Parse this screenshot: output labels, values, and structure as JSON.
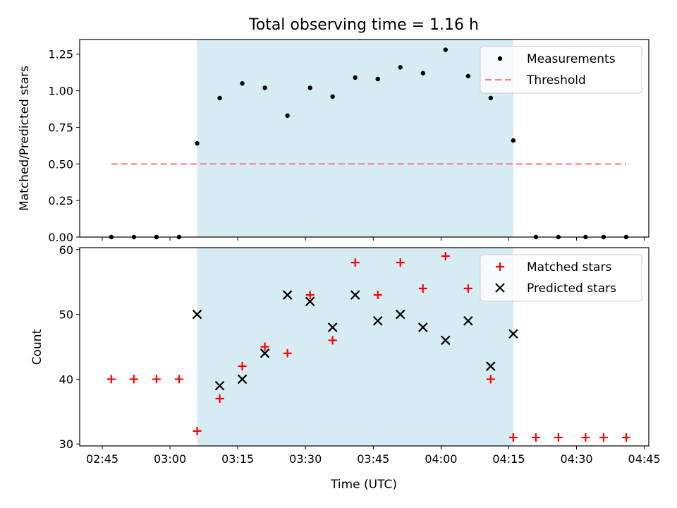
{
  "chart_data": [
    {
      "type": "scatter",
      "title": "Total observing time = 1.16 h",
      "ylabel": "Matched/Predicted stars",
      "xlabel": "",
      "ylim": [
        0,
        1.35
      ],
      "yticks": [
        0,
        0.25,
        0.5,
        0.75,
        1.0,
        1.25
      ],
      "ytick_labels": [
        "0.00",
        "0.25",
        "0.50",
        "0.75",
        "1.00",
        "1.25"
      ],
      "observing_window": {
        "start": "03:06",
        "end": "04:16",
        "color": "#add8e6"
      },
      "legend": {
        "placement": "upper right",
        "entries": [
          {
            "label": "Measurements",
            "series": "Measurements"
          },
          {
            "label": "Threshold",
            "series": "Threshold"
          }
        ]
      },
      "series": [
        {
          "name": "Measurements",
          "marker": "dot",
          "color": "#000000",
          "x": [
            "02:47",
            "02:52",
            "02:57",
            "03:02",
            "03:06",
            "03:11",
            "03:16",
            "03:21",
            "03:26",
            "03:31",
            "03:36",
            "03:41",
            "03:46",
            "03:51",
            "03:56",
            "04:01",
            "04:06",
            "04:11",
            "04:16",
            "04:21",
            "04:26",
            "04:32",
            "04:36",
            "04:41"
          ],
          "y": [
            0,
            0,
            0,
            0,
            0.64,
            0.95,
            1.05,
            1.02,
            0.83,
            1.02,
            0.96,
            1.09,
            1.08,
            1.16,
            1.12,
            1.28,
            1.1,
            0.95,
            0.66,
            0,
            0,
            0,
            0,
            0
          ]
        },
        {
          "name": "Threshold",
          "marker": "dashed-line",
          "color": "#ff7f7f",
          "x": [
            "02:47",
            "04:41"
          ],
          "y": [
            0.5,
            0.5
          ]
        }
      ]
    },
    {
      "type": "scatter",
      "title": "",
      "ylabel": "Count",
      "xlabel": "Time (UTC)",
      "ylim": [
        29.7,
        60.3
      ],
      "yticks": [
        30,
        40,
        50,
        60
      ],
      "ytick_labels": [
        "30",
        "40",
        "50",
        "60"
      ],
      "xlim": [
        "02:40",
        "04:46"
      ],
      "xticks": [
        "02:45",
        "03:00",
        "03:15",
        "03:30",
        "03:45",
        "04:00",
        "04:15",
        "04:30",
        "04:45"
      ],
      "observing_window": {
        "start": "03:06",
        "end": "04:16",
        "color": "#add8e6"
      },
      "legend": {
        "placement": "upper right",
        "entries": [
          {
            "label": "Matched stars",
            "series": "Matched stars"
          },
          {
            "label": "Predicted stars",
            "series": "Predicted stars"
          }
        ]
      },
      "series": [
        {
          "name": "Matched stars",
          "marker": "plus",
          "color": "#ff0000",
          "x": [
            "02:47",
            "02:52",
            "02:57",
            "03:02",
            "03:06",
            "03:11",
            "03:16",
            "03:21",
            "03:26",
            "03:31",
            "03:36",
            "03:41",
            "03:46",
            "03:51",
            "03:56",
            "04:01",
            "04:06",
            "04:11",
            "04:16",
            "04:21",
            "04:26",
            "04:32",
            "04:36",
            "04:41"
          ],
          "y": [
            40,
            40,
            40,
            40,
            32,
            37,
            42,
            45,
            44,
            53,
            46,
            58,
            53,
            58,
            54,
            59,
            54,
            40,
            31,
            31,
            31,
            31,
            31,
            31
          ]
        },
        {
          "name": "Predicted stars",
          "marker": "x",
          "color": "#000000",
          "x": [
            "03:06",
            "03:11",
            "03:16",
            "03:21",
            "03:26",
            "03:31",
            "03:36",
            "03:41",
            "03:46",
            "03:51",
            "03:56",
            "04:01",
            "04:06",
            "04:11",
            "04:16"
          ],
          "y": [
            50,
            39,
            40,
            44,
            53,
            52,
            48,
            53,
            49,
            50,
            48,
            46,
            49,
            42,
            47
          ]
        }
      ]
    }
  ]
}
